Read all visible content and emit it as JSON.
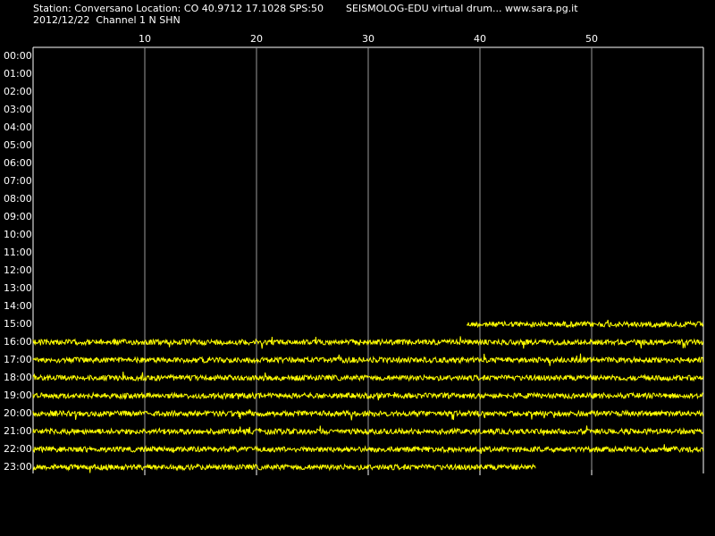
{
  "chart_data": {
    "type": "helicorder",
    "title": "Station: Conversano Location: CO 40.9712 17.1028 SPS:50",
    "subtitle": "SEISMOLOG-EDU virtual drum... www.sara.pg.it",
    "date_channel": "2012/12/22  Channel 1 N SHN",
    "xlim": [
      0,
      60
    ],
    "xticks": [
      10,
      20,
      30,
      40,
      50
    ],
    "rows": [
      "00:00",
      "01:00",
      "02:00",
      "03:00",
      "04:00",
      "05:00",
      "06:00",
      "07:00",
      "08:00",
      "09:00",
      "10:00",
      "11:00",
      "12:00",
      "13:00",
      "14:00",
      "15:00",
      "16:00",
      "17:00",
      "18:00",
      "19:00",
      "20:00",
      "21:00",
      "22:00",
      "23:00"
    ],
    "traces": [
      {
        "row": 15,
        "start": 38.8,
        "end": 60
      },
      {
        "row": 16,
        "start": 0,
        "end": 60
      },
      {
        "row": 17,
        "start": 0,
        "end": 60
      },
      {
        "row": 18,
        "start": 0,
        "end": 60
      },
      {
        "row": 19,
        "start": 0,
        "end": 60
      },
      {
        "row": 20,
        "start": 0,
        "end": 60
      },
      {
        "row": 21,
        "start": 0,
        "end": 60
      },
      {
        "row": 22,
        "start": 0,
        "end": 60
      },
      {
        "row": 23,
        "start": 0,
        "end": 45
      }
    ],
    "color": "#ffff00",
    "grid": true
  }
}
